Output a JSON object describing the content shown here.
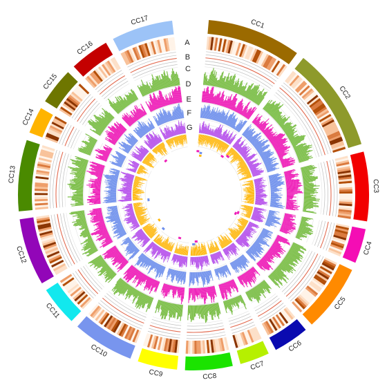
{
  "chart_data": {
    "type": "circos",
    "segments": [
      {
        "name": "CC1",
        "color": "#9B6A00",
        "weight": 95
      },
      {
        "name": "CC2",
        "color": "#8E9A2B",
        "weight": 105
      },
      {
        "name": "CC3",
        "color": "#F20000",
        "weight": 70
      },
      {
        "name": "CC4",
        "color": "#F40DB4",
        "weight": 35
      },
      {
        "name": "CC5",
        "color": "#FF8A00",
        "weight": 68
      },
      {
        "name": "CC6",
        "color": "#0A0AB0",
        "weight": 36
      },
      {
        "name": "CC7",
        "color": "#B6F000",
        "weight": 30
      },
      {
        "name": "CC8",
        "color": "#1BE300",
        "weight": 48
      },
      {
        "name": "CC9",
        "color": "#FFFF00",
        "weight": 40
      },
      {
        "name": "CC10",
        "color": "#7895EE",
        "weight": 62
      },
      {
        "name": "CC11",
        "color": "#12E8EE",
        "weight": 40
      },
      {
        "name": "CC12",
        "color": "#9206B8",
        "weight": 68
      },
      {
        "name": "CC13",
        "color": "#4A8A00",
        "weight": 72
      },
      {
        "name": "CC14",
        "color": "#FFB400",
        "weight": 27
      },
      {
        "name": "CC15",
        "color": "#6E7600",
        "weight": 37
      },
      {
        "name": "CC16",
        "color": "#C40000",
        "weight": 40
      },
      {
        "name": "CC17",
        "color": "#9CC3F7",
        "weight": 62
      }
    ],
    "tracks": [
      {
        "label": "A",
        "kind": "heatmap",
        "color": "#B4500A"
      },
      {
        "label": "B",
        "kind": "lines",
        "color": "#E36A4F"
      },
      {
        "label": "C",
        "kind": "histogram",
        "color": "#7DBF4A"
      },
      {
        "label": "D",
        "kind": "histogram",
        "color": "#EE1FB8"
      },
      {
        "label": "E",
        "kind": "histogram",
        "color": "#6F90EC"
      },
      {
        "label": "F",
        "kind": "histogram",
        "color": "#B44CEB"
      },
      {
        "label": "G",
        "kind": "histogram",
        "color": "#FFB70A"
      }
    ],
    "links_colors": [
      "#EE1FB8",
      "#6F90EC",
      "#FFB70A"
    ]
  }
}
